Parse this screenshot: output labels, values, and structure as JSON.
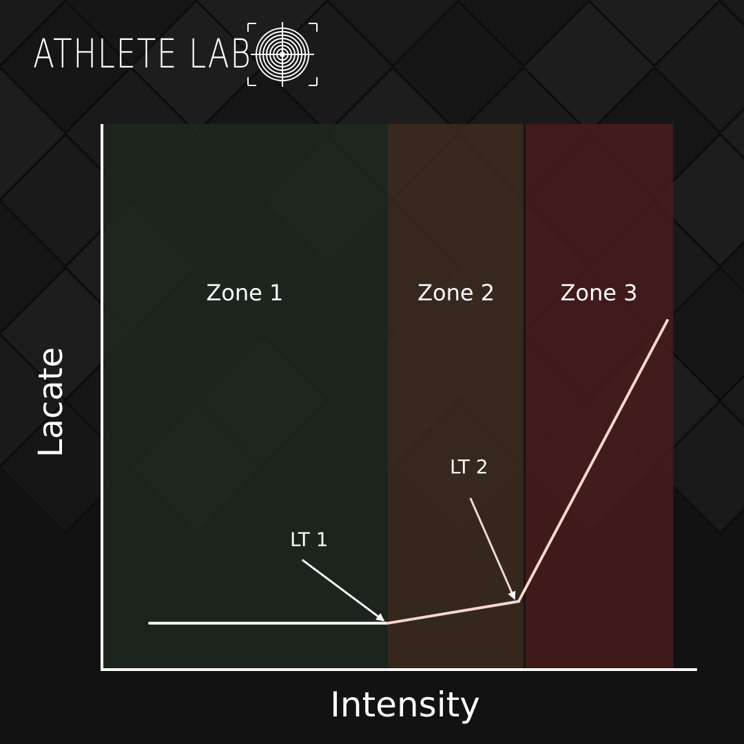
{
  "brand": {
    "name": "ATHLETE LAB",
    "logo_icon": "target-crosshair-icon"
  },
  "colors": {
    "background": "#121212",
    "zone1": "#1f291f",
    "zone2": "#3f2c22",
    "zone3": "#4a1c1c",
    "axis": "#ffffff",
    "curve": "#f6d8d0"
  },
  "chart_data": {
    "type": "line",
    "xlabel": "Intensity",
    "ylabel": "Lacate",
    "xlim": [
      0,
      100
    ],
    "ylim": [
      0,
      100
    ],
    "grid": false,
    "zones": [
      {
        "label": "Zone 1",
        "from": 0,
        "to": 48
      },
      {
        "label": "Zone 2",
        "from": 48,
        "to": 71
      },
      {
        "label": "Zone 3",
        "from": 71,
        "to": 96
      }
    ],
    "series": [
      {
        "x": [
          8,
          48,
          70,
          95
        ],
        "y": [
          8.5,
          8.5,
          12.5,
          64
        ]
      }
    ],
    "annotations": [
      {
        "label": "LT 1",
        "x": 48,
        "y": 8.5
      },
      {
        "label": "LT 2",
        "x": 70,
        "y": 12.5
      }
    ]
  }
}
